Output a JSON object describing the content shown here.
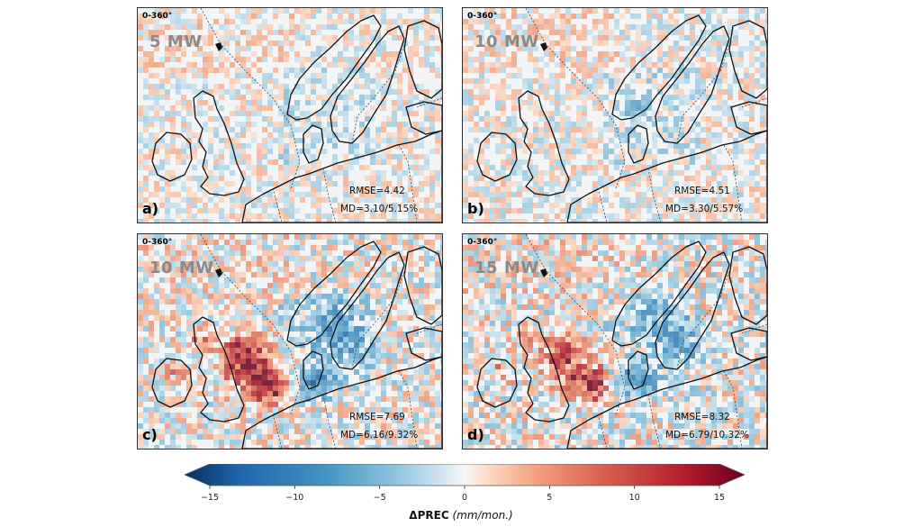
{
  "panels": [
    {
      "id": "a",
      "range": "0-360°",
      "mw": "5 MW",
      "letter": "a)",
      "rmse": "RMSE=4.42",
      "md": "MD=3.10/5.15%"
    },
    {
      "id": "b",
      "range": "0-360°",
      "mw": "10 MW",
      "letter": "b)",
      "rmse": "RMSE=4.51",
      "md": "MD=3.30/5.57%"
    },
    {
      "id": "c",
      "range": "0-360°",
      "mw": "10 MW",
      "letter": "c)",
      "rmse": "RMSE=7.69",
      "md": "MD=6.16/9.32%"
    },
    {
      "id": "d",
      "range": "0-360°",
      "mw": "15 MW",
      "letter": "d)",
      "rmse": "RMSE=8.32",
      "md": "MD=6.79/10.32%"
    }
  ],
  "colorbar": {
    "variable": "ΔPREC",
    "units": "(mm/mon.)",
    "ticks": [
      -15,
      -10,
      -5,
      0,
      5,
      10,
      15
    ],
    "range": [
      -15,
      15
    ],
    "colormap": "RdBu_r"
  },
  "chart_data": [
    {
      "type": "heatmap",
      "panel": "a",
      "mw": "5 MW",
      "rmse": 4.42,
      "md_abs": 3.1,
      "md_pct": 5.15,
      "value_range": [
        -15,
        15
      ]
    },
    {
      "type": "heatmap",
      "panel": "b",
      "mw": "10 MW",
      "rmse": 4.51,
      "md_abs": 3.3,
      "md_pct": 5.57,
      "value_range": [
        -15,
        15
      ]
    },
    {
      "type": "heatmap",
      "panel": "c",
      "mw": "10 MW",
      "rmse": 7.69,
      "md_abs": 6.16,
      "md_pct": 9.32,
      "value_range": [
        -15,
        15
      ]
    },
    {
      "type": "heatmap",
      "panel": "d",
      "mw": "15 MW",
      "rmse": 8.32,
      "md_abs": 6.79,
      "md_pct": 10.32,
      "value_range": [
        -15,
        15
      ]
    }
  ]
}
